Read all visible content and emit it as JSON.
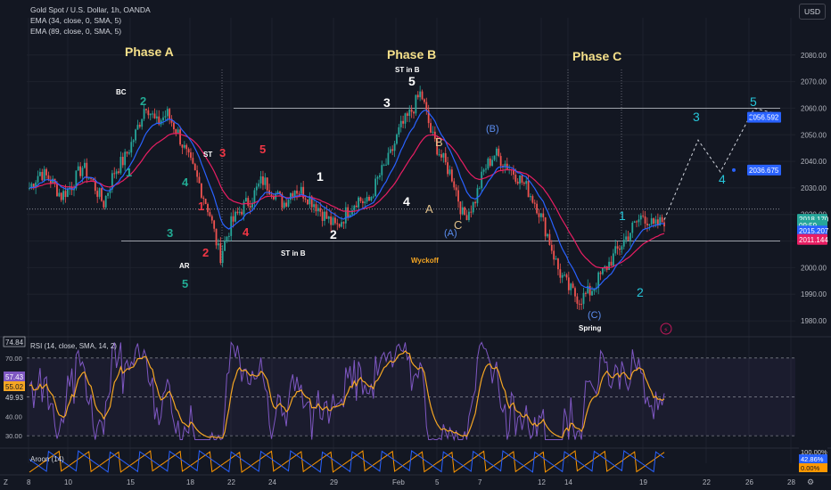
{
  "header": {
    "title": "Gold Spot / U.S. Dollar, 1h, OANDA",
    "ema1": "EMA (34, close, 0, SMA, 5)",
    "ema2": "EMA (89, close, 0, SMA, 5)",
    "currency": "USD"
  },
  "colors": {
    "background": "#131722",
    "up": "#26a69a",
    "down": "#ef5350",
    "ema34": "#2962ff",
    "ema89": "#e91e63",
    "rsi": "#7e57c2",
    "rsi_ma": "#f5a623",
    "aroon_up": "#ff9800",
    "aroon_down": "#2962ff",
    "teal_wave": "#22ab94",
    "red_wave": "#f23645"
  },
  "chart_data": [
    {
      "type": "candlestick",
      "title": "Gold Spot / U.S. Dollar, 1h, OANDA",
      "y_ticks": [
        1980,
        1990,
        2000,
        2010,
        2020,
        2030,
        2040,
        2050,
        2060,
        2070,
        2080
      ],
      "ylim": [
        1976,
        2094
      ],
      "x_ticks": [
        "8",
        "10",
        "15",
        "18",
        "22",
        "24",
        "29",
        "Feb",
        "5",
        "7",
        "12",
        "14",
        "19",
        "22",
        "26",
        "28"
      ],
      "price_path": [
        2030,
        2036,
        2033,
        2027,
        2031,
        2038,
        2032,
        2024,
        2036,
        2041,
        2050,
        2062,
        2054,
        2058,
        2051,
        2041,
        2032,
        2021,
        2004,
        2016,
        2022,
        2026,
        2033,
        2029,
        2024,
        2030,
        2028,
        2024,
        2019,
        2015,
        2021,
        2026,
        2024,
        2034,
        2041,
        2052,
        2058,
        2066,
        2050,
        2041,
        2034,
        2019,
        2024,
        2037,
        2043,
        2039,
        2035,
        2030,
        2023,
        2012,
        1999,
        1992,
        1988,
        1991,
        1997,
        2003,
        2009,
        2015,
        2020,
        2015,
        2018
      ],
      "price_labels": [
        {
          "value": "2056.592",
          "color": "#2962ff",
          "price": 2056.6
        },
        {
          "value": "2036.675",
          "color": "#2962ff",
          "price": 2036.7
        },
        {
          "value": "2018.170",
          "color": "#26a69a",
          "price": 2018.2
        },
        {
          "value": "09:59",
          "color": "#26a69a",
          "price": 2015.9
        },
        {
          "value": "2015.207",
          "color": "#2962ff",
          "price": 2013.8
        },
        {
          "value": "2011.144",
          "color": "#e91e63",
          "price": 2010.6
        }
      ],
      "horizontal_levels": [
        2060,
        2022,
        2010
      ],
      "annotations": [
        {
          "text": "Phase A",
          "kind": "phase"
        },
        {
          "text": "Phase B",
          "kind": "phase"
        },
        {
          "text": "Phase C",
          "kind": "phase"
        },
        {
          "text": "BC",
          "kind": "small"
        },
        {
          "text": "ST",
          "kind": "small"
        },
        {
          "text": "AR",
          "kind": "small"
        },
        {
          "text": "ST in B",
          "kind": "small"
        },
        {
          "text": "ST in B",
          "kind": "small"
        },
        {
          "text": "Spring",
          "kind": "small"
        },
        {
          "text": "Wyckoff",
          "kind": "orange"
        },
        {
          "text": "1",
          "kind": "teal"
        },
        {
          "text": "2",
          "kind": "teal"
        },
        {
          "text": "3",
          "kind": "teal"
        },
        {
          "text": "4",
          "kind": "teal"
        },
        {
          "text": "5",
          "kind": "teal"
        },
        {
          "text": "1",
          "kind": "red"
        },
        {
          "text": "2",
          "kind": "red"
        },
        {
          "text": "3",
          "kind": "red"
        },
        {
          "text": "4",
          "kind": "red"
        },
        {
          "text": "5",
          "kind": "red"
        },
        {
          "text": "1",
          "kind": "white"
        },
        {
          "text": "2",
          "kind": "white"
        },
        {
          "text": "3",
          "kind": "white"
        },
        {
          "text": "4",
          "kind": "white"
        },
        {
          "text": "5",
          "kind": "white"
        },
        {
          "text": "A",
          "kind": "tan"
        },
        {
          "text": "B",
          "kind": "tan"
        },
        {
          "text": "C",
          "kind": "tan"
        },
        {
          "text": "(A)",
          "kind": "blue"
        },
        {
          "text": "(B)",
          "kind": "blue"
        },
        {
          "text": "(C)",
          "kind": "blue"
        },
        {
          "text": "1",
          "kind": "teal2"
        },
        {
          "text": "2",
          "kind": "teal2"
        },
        {
          "text": "3",
          "kind": "teal2"
        },
        {
          "text": "4",
          "kind": "teal2"
        },
        {
          "text": "5",
          "kind": "teal2"
        }
      ]
    },
    {
      "type": "line",
      "title": "RSI (14, close, SMA, 14, 2)",
      "y_ticks": [
        30,
        40,
        50,
        60,
        70
      ],
      "ylim": [
        25,
        80
      ],
      "levels": [
        70,
        50,
        30
      ],
      "values_labels": [
        {
          "value": "74.84",
          "kind": "marker"
        },
        {
          "value": "57.43",
          "kind": "rsi"
        },
        {
          "value": "55.02",
          "kind": "ma"
        },
        {
          "value": "49.93",
          "kind": "plain"
        }
      ]
    },
    {
      "type": "line",
      "title": "Aroon (14)",
      "values_labels": [
        {
          "value": "100.00%",
          "kind": "plain"
        },
        {
          "value": "42.86%",
          "kind": "blue"
        },
        {
          "value": "0.00%",
          "kind": "orange"
        }
      ]
    }
  ],
  "timezone_badge": "Z"
}
